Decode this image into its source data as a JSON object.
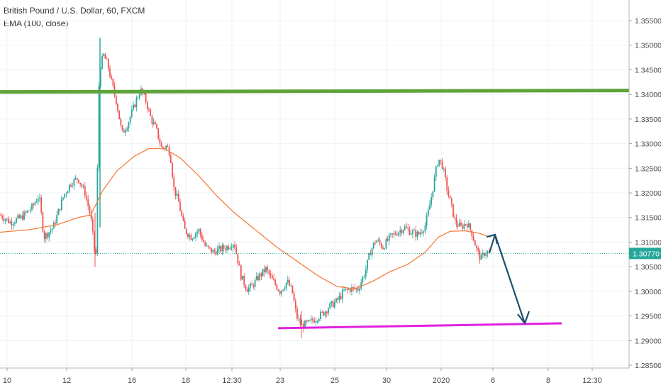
{
  "header": {
    "title": "British Pound / U.S. Dollar, 60, FXCM",
    "indicator": "EMA (100, close)"
  },
  "colors": {
    "up": "#26a69a",
    "down": "#ef5350",
    "ema": "#f57f3c",
    "resistance": "#5fa43a",
    "support": "#e020e0",
    "arrow": "#1d4f6e",
    "price_badge": "#26a69a",
    "grid": "#eef1f4"
  },
  "chart_data": {
    "type": "candlestick",
    "ylim": [
      1.285,
      1.358
    ],
    "y_ticks": [
      "1.35500",
      "1.35000",
      "1.34500",
      "1.34000",
      "1.33500",
      "1.33000",
      "1.32500",
      "1.32000",
      "1.31500",
      "1.31000",
      "1.30500",
      "1.30000",
      "1.29500",
      "1.29000",
      "1.28500"
    ],
    "x_ticks": [
      "10",
      "12",
      "16",
      "18",
      "12:30",
      "23",
      "25",
      "30",
      "2020",
      "6",
      "8",
      "12:30"
    ],
    "last_price": "1.30770",
    "price_path": [
      [
        0,
        1.3155
      ],
      [
        15,
        1.314
      ],
      [
        30,
        1.315
      ],
      [
        45,
        1.317
      ],
      [
        55,
        1.3195
      ],
      [
        62,
        1.311
      ],
      [
        75,
        1.313
      ],
      [
        90,
        1.3195
      ],
      [
        100,
        1.322
      ],
      [
        110,
        1.323
      ],
      [
        120,
        1.32
      ],
      [
        128,
        1.315
      ],
      [
        135,
        1.306
      ],
      [
        140,
        1.345
      ],
      [
        146,
        1.348
      ],
      [
        152,
        1.346
      ],
      [
        158,
        1.342
      ],
      [
        165,
        1.338
      ],
      [
        172,
        1.332
      ],
      [
        180,
        1.334
      ],
      [
        190,
        1.338
      ],
      [
        198,
        1.341
      ],
      [
        205,
        1.339
      ],
      [
        213,
        1.335
      ],
      [
        220,
        1.333
      ],
      [
        228,
        1.329
      ],
      [
        235,
        1.3295
      ],
      [
        240,
        1.328
      ],
      [
        245,
        1.321
      ],
      [
        252,
        1.318
      ],
      [
        260,
        1.3125
      ],
      [
        270,
        1.311
      ],
      [
        280,
        1.3125
      ],
      [
        290,
        1.309
      ],
      [
        300,
        1.308
      ],
      [
        310,
        1.3085
      ],
      [
        320,
        1.309
      ],
      [
        330,
        1.31
      ],
      [
        340,
        1.303
      ],
      [
        348,
        1.3005
      ],
      [
        355,
        1.301
      ],
      [
        365,
        1.303
      ],
      [
        375,
        1.3045
      ],
      [
        385,
        1.302
      ],
      [
        395,
        1.3
      ],
      [
        405,
        1.302
      ],
      [
        412,
        1.3
      ],
      [
        418,
        1.295
      ],
      [
        425,
        1.293
      ],
      [
        435,
        1.2935
      ],
      [
        445,
        1.2945
      ],
      [
        455,
        1.2955
      ],
      [
        465,
        1.297
      ],
      [
        475,
        1.298
      ],
      [
        485,
        1.3
      ],
      [
        495,
        1.3005
      ],
      [
        505,
        1.3005
      ],
      [
        515,
        1.304
      ],
      [
        522,
        1.308
      ],
      [
        530,
        1.3105
      ],
      [
        540,
        1.309
      ],
      [
        550,
        1.311
      ],
      [
        560,
        1.312
      ],
      [
        570,
        1.313
      ],
      [
        580,
        1.312
      ],
      [
        590,
        1.3115
      ],
      [
        600,
        1.3135
      ],
      [
        608,
        1.319
      ],
      [
        614,
        1.324
      ],
      [
        618,
        1.327
      ],
      [
        624,
        1.3255
      ],
      [
        630,
        1.321
      ],
      [
        636,
        1.3175
      ],
      [
        642,
        1.314
      ],
      [
        650,
        1.313
      ],
      [
        658,
        1.314
      ],
      [
        665,
        1.312
      ],
      [
        672,
        1.3085
      ],
      [
        678,
        1.3065
      ],
      [
        684,
        1.308
      ],
      [
        690,
        1.3078
      ]
    ],
    "ema_path": [
      [
        0,
        1.312
      ],
      [
        40,
        1.3125
      ],
      [
        80,
        1.3135
      ],
      [
        110,
        1.315
      ],
      [
        128,
        1.3155
      ],
      [
        145,
        1.3205
      ],
      [
        165,
        1.3245
      ],
      [
        190,
        1.3275
      ],
      [
        210,
        1.329
      ],
      [
        232,
        1.329
      ],
      [
        255,
        1.327
      ],
      [
        280,
        1.3235
      ],
      [
        305,
        1.3195
      ],
      [
        330,
        1.316
      ],
      [
        360,
        1.3125
      ],
      [
        390,
        1.309
      ],
      [
        420,
        1.306
      ],
      [
        450,
        1.303
      ],
      [
        475,
        1.301
      ],
      [
        500,
        1.3005
      ],
      [
        525,
        1.302
      ],
      [
        550,
        1.304
      ],
      [
        575,
        1.3055
      ],
      [
        600,
        1.308
      ],
      [
        618,
        1.311
      ],
      [
        635,
        1.3122
      ],
      [
        655,
        1.3123
      ],
      [
        675,
        1.3118
      ],
      [
        692,
        1.311
      ]
    ],
    "resistance_line": {
      "x": [
        0,
        932
      ],
      "y": [
        1.3405,
        1.3408
      ]
    },
    "support_line": {
      "x": [
        392,
        792
      ],
      "y": [
        1.2925,
        1.2935
      ]
    },
    "projection_arrow": {
      "from": [
        690,
        1.3078
      ],
      "peak": [
        698,
        1.3115
      ],
      "to": [
        740,
        1.2935
      ]
    }
  }
}
